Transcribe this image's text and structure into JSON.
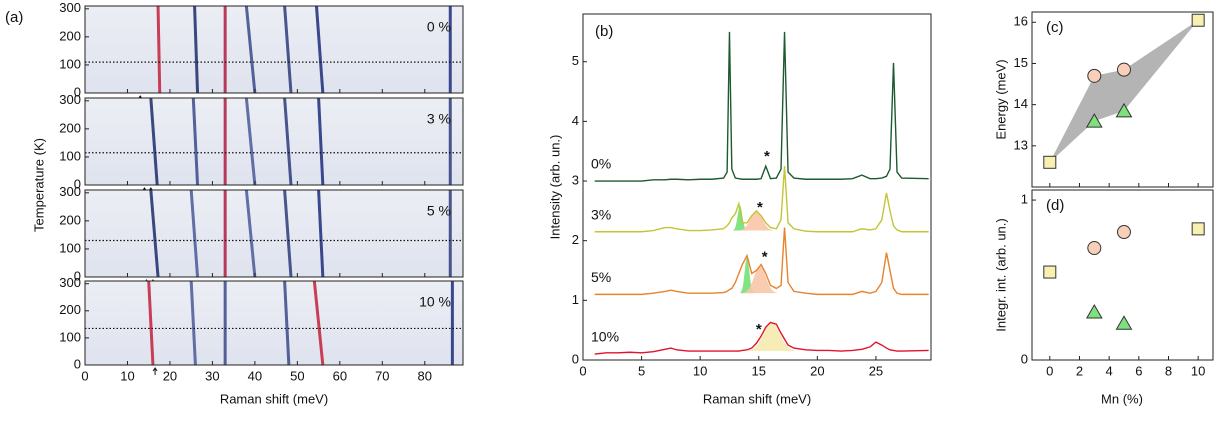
{
  "chart_data": [
    {
      "type": "heatmap",
      "panel_label": "(a)",
      "xlabel": "Raman shift (meV)",
      "ylabel": "Temperature (K)",
      "xlim": [
        0,
        89
      ],
      "xticks": [
        0,
        10,
        20,
        30,
        40,
        50,
        60,
        70,
        80
      ],
      "ylim": [
        0,
        310
      ],
      "yticks": [
        0,
        100,
        200,
        300
      ],
      "panels": [
        {
          "label": "0 %",
          "tc": 110,
          "arrows": [
            13
          ],
          "modes": [
            {
              "x0": 17.6,
              "x300": 17.2,
              "color": "#c4203c"
            },
            {
              "x0": 26.5,
              "x300": 25.8,
              "color": "#1c2c6c"
            },
            {
              "x0": 33.0,
              "x300": 33.0,
              "color": "#b01c40"
            },
            {
              "x0": 40.0,
              "x300": 38.0,
              "color": "#3a4a8a"
            },
            {
              "x0": 48.5,
              "x300": 47.0,
              "color": "#2c3c7c"
            },
            {
              "x0": 56.0,
              "x300": 54.5,
              "color": "#1c2c7c"
            },
            {
              "x0": 86.0,
              "x300": 86.0,
              "color": "#1c2c7c"
            }
          ]
        },
        {
          "label": "3 %",
          "tc": 115,
          "arrows": [
            14,
            15.5
          ],
          "modes": [
            {
              "x0": 17.0,
              "x300": 15.5,
              "color": "#1c2c6c"
            },
            {
              "x0": 26.5,
              "x300": 25.5,
              "color": "#3a4a8a"
            },
            {
              "x0": 33.0,
              "x300": 33.0,
              "color": "#b01c40"
            },
            {
              "x0": 40.0,
              "x300": 38.0,
              "color": "#4a5a9a"
            },
            {
              "x0": 48.5,
              "x300": 47.0,
              "color": "#2c3c7c"
            },
            {
              "x0": 56.0,
              "x300": 55.0,
              "color": "#1c2c7c"
            },
            {
              "x0": 86.0,
              "x300": 86.0,
              "color": "#2c3c7c"
            }
          ]
        },
        {
          "label": "5 %",
          "tc": 130,
          "arrows": [
            14.5,
            16
          ],
          "modes": [
            {
              "x0": 17.2,
              "x300": 15.5,
              "color": "#1c2c6c"
            },
            {
              "x0": 26.5,
              "x300": 25.0,
              "color": "#4a5a9a"
            },
            {
              "x0": 33.0,
              "x300": 33.0,
              "color": "#b01c40"
            },
            {
              "x0": 40.0,
              "x300": 38.0,
              "color": "#4a5a9a"
            },
            {
              "x0": 48.5,
              "x300": 47.0,
              "color": "#2c3c7c"
            },
            {
              "x0": 56.0,
              "x300": 55.0,
              "color": "#1c2c7c"
            },
            {
              "x0": 86.0,
              "x300": 86.0,
              "color": "#2c3c7c"
            }
          ]
        },
        {
          "label": "10 %",
          "tc": 135,
          "arrows": [
            16.5
          ],
          "modes": [
            {
              "x0": 16.0,
              "x300": 15.0,
              "color": "#c4203c"
            },
            {
              "x0": 26.0,
              "x300": 25.0,
              "color": "#4a5a9a"
            },
            {
              "x0": 33.0,
              "x300": 33.0,
              "color": "#3a4a8a"
            },
            {
              "x0": 48.0,
              "x300": 47.0,
              "color": "#3a4a8a"
            },
            {
              "x0": 56.0,
              "x300": 54.0,
              "color": "#c4203c"
            },
            {
              "x0": 86.5,
              "x300": 86.5,
              "color": "#1c2c7c"
            }
          ]
        }
      ]
    },
    {
      "type": "line",
      "panel_label": "(b)",
      "xlabel": "Raman shift (meV)",
      "ylabel": "Intensity (arb. un.)",
      "xlim": [
        0,
        29.7
      ],
      "xticks": [
        0,
        5,
        10,
        15,
        20,
        25
      ],
      "ylim": [
        0,
        5.8
      ],
      "yticks": [
        0,
        1,
        2,
        3,
        4,
        5
      ],
      "x": [
        1,
        2,
        3,
        4,
        5,
        6,
        7,
        7.5,
        8,
        9,
        10,
        11,
        12,
        12.3,
        12.5,
        12.7,
        13,
        13.3,
        13.6,
        14,
        14.4,
        14.8,
        15.2,
        15.6,
        16,
        16.5,
        16.9,
        17.2,
        17.5,
        18,
        19,
        20,
        21,
        22,
        23,
        23.8,
        24.5,
        25,
        25.5,
        25.9,
        26.2,
        26.5,
        26.8,
        27.2,
        29.5
      ],
      "series": [
        {
          "name": "0%",
          "color": "#1e5a30",
          "values": [
            3.0,
            3.0,
            3.0,
            3.0,
            3.0,
            3.02,
            3.02,
            3.03,
            3.03,
            3.02,
            3.03,
            3.03,
            3.05,
            3.15,
            5.5,
            3.2,
            3.05,
            3.04,
            3.03,
            3.03,
            3.03,
            3.03,
            3.04,
            3.25,
            3.04,
            3.05,
            3.2,
            5.5,
            3.15,
            3.05,
            3.03,
            3.03,
            3.03,
            3.03,
            3.04,
            3.1,
            3.04,
            3.04,
            3.05,
            3.08,
            3.2,
            4.98,
            3.15,
            3.05,
            3.04
          ]
        },
        {
          "name": "3%",
          "color": "#c4c436",
          "values": [
            2.15,
            2.15,
            2.15,
            2.15,
            2.15,
            2.17,
            2.22,
            2.22,
            2.2,
            2.17,
            2.17,
            2.18,
            2.2,
            2.25,
            2.3,
            2.38,
            2.45,
            2.62,
            2.3,
            2.3,
            2.42,
            2.5,
            2.42,
            2.3,
            2.22,
            2.2,
            2.35,
            3.25,
            2.3,
            2.2,
            2.16,
            2.15,
            2.15,
            2.15,
            2.15,
            2.2,
            2.18,
            2.2,
            2.35,
            2.8,
            2.5,
            2.25,
            2.18,
            2.15,
            2.15
          ]
        },
        {
          "name": "5%",
          "color": "#e8822c",
          "values": [
            1.1,
            1.1,
            1.1,
            1.1,
            1.1,
            1.12,
            1.15,
            1.17,
            1.15,
            1.12,
            1.12,
            1.12,
            1.13,
            1.15,
            1.18,
            1.2,
            1.3,
            1.45,
            1.6,
            1.75,
            1.45,
            1.5,
            1.6,
            1.45,
            1.25,
            1.2,
            1.25,
            2.22,
            1.3,
            1.15,
            1.12,
            1.1,
            1.1,
            1.1,
            1.1,
            1.15,
            1.12,
            1.15,
            1.3,
            1.8,
            1.5,
            1.2,
            1.12,
            1.1,
            1.1
          ]
        },
        {
          "name": "10%",
          "color": "#e0142c",
          "values": [
            0.1,
            0.12,
            0.12,
            0.13,
            0.12,
            0.14,
            0.18,
            0.2,
            0.17,
            0.15,
            0.15,
            0.15,
            0.15,
            0.15,
            0.15,
            0.15,
            0.15,
            0.15,
            0.16,
            0.17,
            0.2,
            0.28,
            0.4,
            0.55,
            0.63,
            0.6,
            0.45,
            0.35,
            0.25,
            0.2,
            0.17,
            0.16,
            0.16,
            0.15,
            0.16,
            0.18,
            0.22,
            0.3,
            0.25,
            0.2,
            0.17,
            0.16,
            0.15,
            0.15,
            0.16
          ]
        }
      ],
      "fills": [
        {
          "color": "#74e074",
          "center": 13.4,
          "height": 0.42,
          "width": 0.2,
          "base": 2.17
        },
        {
          "color": "#f8c6a8",
          "center": 14.8,
          "height": 0.33,
          "width": 0.5,
          "base": 2.17
        },
        {
          "color": "#74e074",
          "center": 14.0,
          "height": 0.6,
          "width": 0.2,
          "base": 1.12
        },
        {
          "color": "#f8c6a8",
          "center": 15.1,
          "height": 0.45,
          "width": 0.5,
          "base": 1.12
        },
        {
          "color": "#f4eab0",
          "center": 16.1,
          "height": 0.48,
          "width": 0.7,
          "base": 0.15
        }
      ],
      "annotations": [
        {
          "text": "*",
          "x": 15.7,
          "y": 3.4
        },
        {
          "text": "*",
          "x": 15.1,
          "y": 2.55
        },
        {
          "text": "*",
          "x": 15.5,
          "y": 1.72
        },
        {
          "text": "*",
          "x": 15.0,
          "y": 0.5
        }
      ]
    },
    {
      "type": "scatter",
      "panel_label": "(c)",
      "ylabel": "Energy (meV)",
      "xlim": [
        -1.2,
        11.0
      ],
      "xticks": [
        0,
        2,
        4,
        6,
        8,
        10
      ],
      "ylim": [
        12.0,
        16.25
      ],
      "yticks": [
        13,
        14,
        15,
        16
      ],
      "band": {
        "color": "#b4b4b4",
        "x": [
          0,
          3,
          5,
          10,
          5,
          3
        ],
        "values": [
          12.6,
          14.7,
          14.85,
          16.05,
          13.85,
          13.6
        ]
      },
      "series": [
        {
          "marker": "square",
          "color": "#f8f0b0",
          "x": [
            0,
            10
          ],
          "values": [
            12.6,
            16.05
          ]
        },
        {
          "marker": "circle",
          "color": "#f8cfb8",
          "x": [
            3,
            5
          ],
          "values": [
            14.7,
            14.85
          ]
        },
        {
          "marker": "triangle",
          "color": "#7ee07e",
          "x": [
            3,
            5
          ],
          "values": [
            13.6,
            13.85
          ]
        }
      ]
    },
    {
      "type": "scatter",
      "panel_label": "(d)",
      "xlabel": "Mn (%)",
      "ylabel": "Integr. int. (arb. un.)",
      "xlim": [
        -1.2,
        11.0
      ],
      "xticks": [
        0,
        2,
        4,
        6,
        8,
        10
      ],
      "ylim": [
        0,
        1.063
      ],
      "yticks": [
        0,
        1
      ],
      "series": [
        {
          "marker": "square",
          "color": "#f8f0b0",
          "x": [
            0,
            10
          ],
          "values": [
            0.55,
            0.82
          ]
        },
        {
          "marker": "circle",
          "color": "#f8cfb8",
          "x": [
            3,
            5
          ],
          "values": [
            0.7,
            0.8
          ]
        },
        {
          "marker": "triangle",
          "color": "#7ee07e",
          "x": [
            3,
            5
          ],
          "values": [
            0.3,
            0.23
          ]
        }
      ]
    }
  ]
}
